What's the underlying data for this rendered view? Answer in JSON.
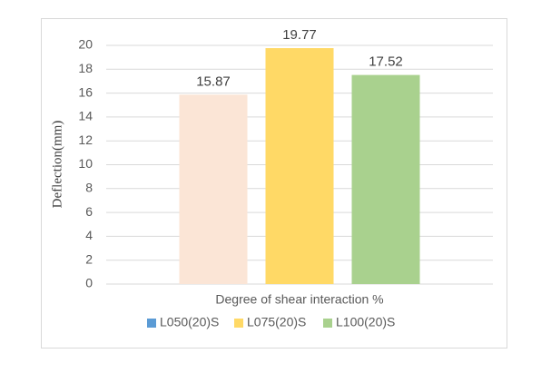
{
  "chart_data": {
    "type": "bar",
    "x_label": "Degree of shear interaction %",
    "y_label": "Deflection(mm)",
    "categories": [
      null
    ],
    "series": [
      {
        "name": "L050(20)S",
        "color": "#fbe5d6",
        "legend_color": "#5b9bd5",
        "values": [
          15.87
        ]
      },
      {
        "name": "L075(20)S",
        "color": "#ffd966",
        "legend_color": "#ffd966",
        "values": [
          19.77
        ]
      },
      {
        "name": "L100(20)S",
        "color": "#a9d18e",
        "legend_color": "#a9d18e",
        "values": [
          17.52
        ]
      }
    ],
    "ylim": [
      0,
      20
    ],
    "yticks": [
      0,
      2,
      4,
      6,
      8,
      10,
      12,
      14,
      16,
      18,
      20
    ],
    "grid": true,
    "legend": "bottom"
  }
}
